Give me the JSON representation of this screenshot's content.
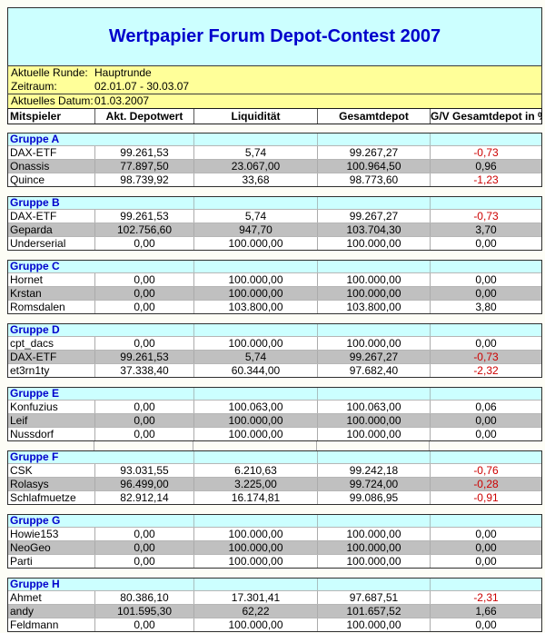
{
  "title": "Wertpapier Forum Depot-Contest 2007",
  "info": {
    "rows": [
      {
        "label": "Aktuelle Runde:",
        "value": "Hauptrunde"
      },
      {
        "label": "Zeitraum:",
        "value": "02.01.07 - 30.03.07"
      }
    ],
    "date_row": {
      "label": "Aktuelles Datum:",
      "value": "01.03.2007"
    }
  },
  "columns": [
    "Mitspieler",
    "Akt. Depotwert",
    "Liquidität",
    "Gesamtdepot",
    "G/V Gesamtdepot in %"
  ],
  "colors": {
    "header_bg": "#CCFFFF",
    "info_bg": "#FFFF99",
    "row_alt_bg": "#C0C0C0",
    "title_text": "#0000CC",
    "group_text": "#0000CC",
    "negative_text": "#CC0000"
  },
  "groups": [
    {
      "name": "Gruppe A",
      "players": [
        {
          "cells": [
            "DAX-ETF",
            "99.261,53",
            "5,74",
            "99.267,27",
            "-0,73"
          ]
        },
        {
          "cells": [
            "Onassis",
            "77.897,50",
            "23.067,00",
            "100.964,50",
            "0,96"
          ]
        },
        {
          "cells": [
            "Quince",
            "98.739,92",
            "33,68",
            "98.773,60",
            "-1,23"
          ]
        }
      ]
    },
    {
      "name": "Gruppe B",
      "players": [
        {
          "cells": [
            "DAX-ETF",
            "99.261,53",
            "5,74",
            "99.267,27",
            "-0,73"
          ]
        },
        {
          "cells": [
            "Geparda",
            "102.756,60",
            "947,70",
            "103.704,30",
            "3,70"
          ]
        },
        {
          "cells": [
            "Underserial",
            "0,00",
            "100.000,00",
            "100.000,00",
            "0,00"
          ]
        }
      ]
    },
    {
      "name": "Gruppe C",
      "players": [
        {
          "cells": [
            "Hornet",
            "0,00",
            "100.000,00",
            "100.000,00",
            "0,00"
          ]
        },
        {
          "cells": [
            "Krstan",
            "0,00",
            "100.000,00",
            "100.000,00",
            "0,00"
          ]
        },
        {
          "cells": [
            "Romsdalen",
            "0,00",
            "103.800,00",
            "103.800,00",
            "3,80"
          ]
        }
      ]
    },
    {
      "name": "Gruppe D",
      "players": [
        {
          "cells": [
            "cpt_dacs",
            "0,00",
            "100.000,00",
            "100.000,00",
            "0,00"
          ]
        },
        {
          "cells": [
            "DAX-ETF",
            "99.261,53",
            "5,74",
            "99.267,27",
            "-0,73"
          ]
        },
        {
          "cells": [
            "et3rn1ty",
            "37.338,40",
            "60.344,00",
            "97.682,40",
            "-2,32"
          ]
        }
      ]
    },
    {
      "name": "Gruppe E",
      "players": [
        {
          "cells": [
            "Konfuzius",
            "0,00",
            "100.063,00",
            "100.063,00",
            "0,06"
          ]
        },
        {
          "cells": [
            "Leif",
            "0,00",
            "100.000,00",
            "100.000,00",
            "0,00"
          ]
        },
        {
          "cells": [
            "Nussdorf",
            "0,00",
            "100.000,00",
            "100.000,00",
            "0,00"
          ]
        }
      ]
    },
    {
      "name": "Gruppe F",
      "players": [
        {
          "cells": [
            "CSK",
            "93.031,55",
            "6.210,63",
            "99.242,18",
            "-0,76"
          ]
        },
        {
          "cells": [
            "Rolasys",
            "96.499,00",
            "3.225,00",
            "99.724,00",
            "-0,28"
          ]
        },
        {
          "cells": [
            "Schlafmuetze",
            "82.912,14",
            "16.174,81",
            "99.086,95",
            "-0,91"
          ]
        }
      ]
    },
    {
      "name": "Gruppe G",
      "players": [
        {
          "cells": [
            "Howie153",
            "0,00",
            "100.000,00",
            "100.000,00",
            "0,00"
          ]
        },
        {
          "cells": [
            "NeoGeo",
            "0,00",
            "100.000,00",
            "100.000,00",
            "0,00"
          ]
        },
        {
          "cells": [
            "Parti",
            "0,00",
            "100.000,00",
            "100.000,00",
            "0,00"
          ]
        }
      ]
    },
    {
      "name": "Gruppe H",
      "players": [
        {
          "cells": [
            "Ahmet",
            "80.386,10",
            "17.301,41",
            "97.687,51",
            "-2,31"
          ]
        },
        {
          "cells": [
            "andy",
            "101.595,30",
            "62,22",
            "101.657,52",
            "1,66"
          ]
        },
        {
          "cells": [
            "Feldmann",
            "0,00",
            "100.000,00",
            "100.000,00",
            "0,00"
          ]
        }
      ]
    }
  ]
}
